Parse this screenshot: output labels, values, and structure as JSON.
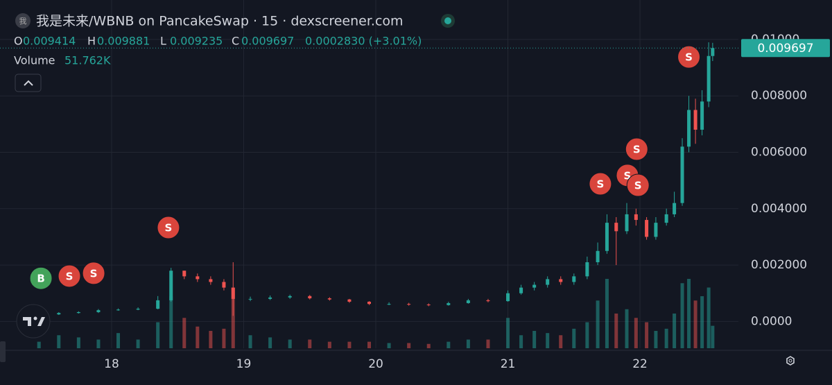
{
  "chart_data": {
    "type": "candlestick",
    "icon_text": "我",
    "title": "我是未来/WBNB on PancakeSwap · 15 · dexscreener.com",
    "ohlc_letters": [
      "O",
      "H",
      "L",
      "C"
    ],
    "change": "0.0002830 (+3.01%)",
    "volume_legend": {
      "name": "Volume",
      "value": "51.762K"
    },
    "up_color": "#26a69a",
    "down_color": "#ef5350",
    "grid": true,
    "x": [
      17.45,
      17.6,
      17.75,
      17.9,
      18.05,
      18.2,
      18.35,
      18.45,
      18.55,
      18.65,
      18.75,
      18.85,
      18.92,
      19.05,
      19.2,
      19.35,
      19.5,
      19.65,
      19.8,
      19.95,
      20.1,
      20.25,
      20.4,
      20.55,
      20.7,
      20.85,
      21.0,
      21.1,
      21.2,
      21.3,
      21.4,
      21.5,
      21.6,
      21.68,
      21.75,
      21.82,
      21.9,
      21.97,
      22.05,
      22.12,
      22.2,
      22.26,
      22.32,
      22.37,
      22.42,
      22.47,
      22.52,
      22.55
    ],
    "open": [
      0.00022,
      0.00025,
      0.0003,
      0.00033,
      0.0004,
      0.00042,
      0.00045,
      0.00075,
      0.0018,
      0.0016,
      0.0015,
      0.0014,
      0.0012,
      0.0008,
      0.0008,
      0.00085,
      0.0009,
      0.00082,
      0.00078,
      0.0007,
      0.00062,
      0.00062,
      0.0006,
      0.00058,
      0.00065,
      0.00075,
      0.00072,
      0.001,
      0.0012,
      0.0013,
      0.0015,
      0.0014,
      0.0016,
      0.0021,
      0.0025,
      0.0035,
      0.0032,
      0.0038,
      0.0036,
      0.003,
      0.0035,
      0.0038,
      0.0042,
      0.0062,
      0.0075,
      0.0068,
      0.0078,
      0.009414
    ],
    "high": [
      0.00028,
      0.00033,
      0.00036,
      0.00044,
      0.00046,
      0.0005,
      0.0009,
      0.0019,
      0.0018,
      0.0017,
      0.0016,
      0.0015,
      0.0021,
      0.00088,
      0.00092,
      0.00095,
      0.00094,
      0.00086,
      0.0008,
      0.00072,
      0.00068,
      0.00066,
      0.00064,
      0.0007,
      0.0008,
      0.0008,
      0.0011,
      0.0013,
      0.0014,
      0.0016,
      0.0016,
      0.0017,
      0.0023,
      0.0028,
      0.0038,
      0.0037,
      0.0042,
      0.004,
      0.0037,
      0.0037,
      0.004,
      0.0046,
      0.0065,
      0.008,
      0.0079,
      0.0082,
      0.0099,
      0.009881
    ],
    "low": [
      0.0002,
      0.00023,
      0.00028,
      0.0003,
      0.00038,
      0.0004,
      0.00043,
      0.0007,
      0.0015,
      0.0014,
      0.0013,
      0.0011,
      0.0002,
      0.00072,
      0.00076,
      0.0008,
      0.00078,
      0.00074,
      0.00066,
      0.00058,
      0.00058,
      0.00056,
      0.00054,
      0.00056,
      0.00063,
      0.00068,
      0.0007,
      0.00095,
      0.0011,
      0.0012,
      0.0013,
      0.0013,
      0.0015,
      0.002,
      0.0024,
      0.002,
      0.0031,
      0.0034,
      0.0029,
      0.0029,
      0.0034,
      0.0037,
      0.0041,
      0.006,
      0.0063,
      0.0066,
      0.0076,
      0.009235
    ],
    "close": [
      0.00025,
      0.0003,
      0.00033,
      0.0004,
      0.00042,
      0.00045,
      0.00075,
      0.0018,
      0.0016,
      0.0015,
      0.0014,
      0.0012,
      0.0008,
      0.0008,
      0.00085,
      0.0009,
      0.00082,
      0.00078,
      0.0007,
      0.00062,
      0.00062,
      0.0006,
      0.00058,
      0.00065,
      0.00075,
      0.00072,
      0.001,
      0.0012,
      0.0013,
      0.0015,
      0.0014,
      0.0016,
      0.0021,
      0.0025,
      0.0035,
      0.0032,
      0.0038,
      0.0036,
      0.003,
      0.0035,
      0.0038,
      0.0042,
      0.0062,
      0.0075,
      0.0068,
      0.0078,
      0.009414,
      0.009697
    ],
    "volume": {
      "values": [
        15000,
        30000,
        25000,
        20000,
        35000,
        20000,
        60000,
        120000,
        70000,
        50000,
        40000,
        45000,
        140000,
        30000,
        25000,
        20000,
        20000,
        15000,
        15000,
        15000,
        12000,
        12000,
        10000,
        15000,
        20000,
        20000,
        70000,
        30000,
        40000,
        35000,
        30000,
        45000,
        60000,
        110000,
        160000,
        80000,
        90000,
        70000,
        60000,
        40000,
        45000,
        80000,
        150000,
        160000,
        110000,
        120000,
        140000,
        51762
      ]
    },
    "markers": [
      {
        "x": 17.465,
        "y": 0.00153,
        "label": "B",
        "color": "#43a35a"
      },
      {
        "x": 17.68,
        "y": 0.00161,
        "label": "S",
        "color": "#d9453c"
      },
      {
        "x": 17.864,
        "y": 0.00171,
        "label": "S",
        "color": "#d9453c"
      },
      {
        "x": 18.43,
        "y": 0.00333,
        "label": "S",
        "color": "#d9453c"
      },
      {
        "x": 21.7,
        "y": 0.00488,
        "label": "S",
        "color": "#d9453c"
      },
      {
        "x": 21.905,
        "y": 0.00518,
        "label": "S",
        "color": "#d9453c"
      },
      {
        "x": 21.985,
        "y": 0.00483,
        "label": "S",
        "color": "#d9453c"
      },
      {
        "x": 21.975,
        "y": 0.00611,
        "label": "S",
        "color": "#d9453c"
      },
      {
        "x": 22.37,
        "y": 0.00938,
        "label": "S",
        "color": "#d9453c"
      }
    ],
    "xlim": [
      17.155,
      22.745
    ],
    "xticks": [
      18,
      19,
      20,
      21,
      22
    ],
    "ylim": [
      -0.00095,
      0.0114
    ],
    "yticks": [
      {
        "value": 0,
        "label": "0.0000"
      },
      {
        "value": 0.002,
        "label": "0.002000"
      },
      {
        "value": 0.004,
        "label": "0.004000"
      },
      {
        "value": 0.006,
        "label": "0.006000"
      },
      {
        "value": 0.008,
        "label": "0.008000"
      },
      {
        "value": 0.01,
        "label": "0.01000"
      }
    ]
  }
}
